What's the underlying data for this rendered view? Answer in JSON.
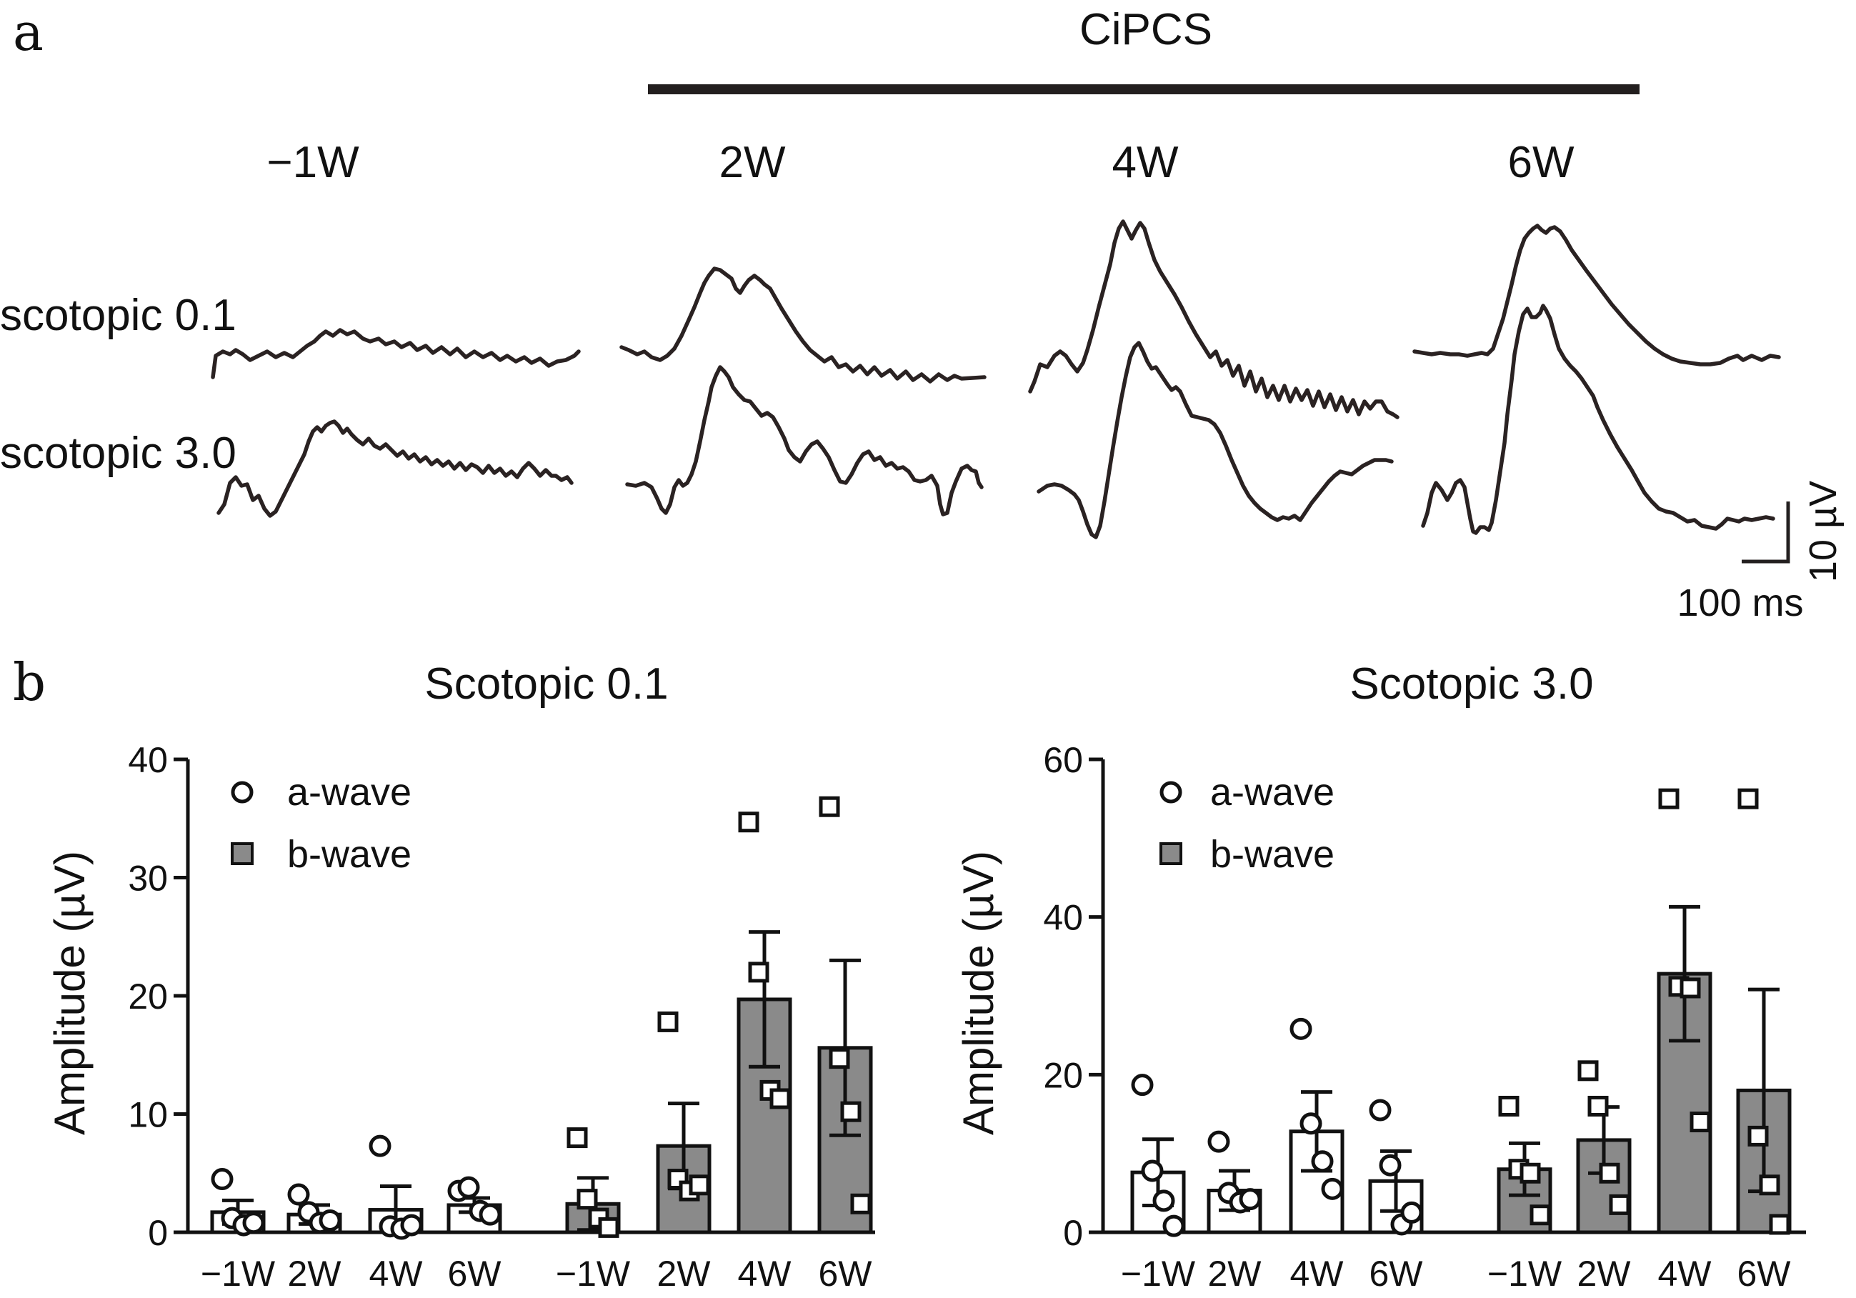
{
  "panel_a": {
    "letter": "a",
    "treatment_label": "CiPCS",
    "timepoints": [
      "−1W",
      "2W",
      "4W",
      "6W"
    ],
    "row_labels": [
      "scotopic 0.1",
      "scotopic 3.0"
    ],
    "scale_bar": {
      "vertical_label": "10 µV",
      "horizontal_label": "100 ms"
    }
  },
  "panel_b": {
    "letter": "b"
  },
  "legend": {
    "a_wave": "a-wave",
    "b_wave": "b-wave"
  },
  "chart_data": [
    {
      "type": "bar",
      "title": "Scotopic 0.1",
      "ylabel": "Amplitude (µV)",
      "xlabel": "",
      "ylim": [
        0,
        40
      ],
      "yticks": [
        "0",
        "10",
        "20",
        "30",
        "40"
      ],
      "categories": [
        "−1W",
        "2W",
        "4W",
        "6W",
        "−1W",
        "2W",
        "4W",
        "6W"
      ],
      "series": [
        {
          "name": "a-wave",
          "categories": [
            "−1W",
            "2W",
            "4W",
            "6W"
          ],
          "means": [
            1.7,
            1.5,
            1.9,
            2.3
          ],
          "sem": [
            1.0,
            0.8,
            2.0,
            0.6
          ],
          "points": [
            [
              4.5,
              1.2,
              0.6,
              0.8
            ],
            [
              3.2,
              1.7,
              0.8,
              1.0
            ],
            [
              7.3,
              0.5,
              0.3,
              0.6
            ],
            [
              3.5,
              3.8,
              1.8,
              1.5
            ]
          ]
        },
        {
          "name": "b-wave",
          "categories": [
            "−1W",
            "2W",
            "4W",
            "6W"
          ],
          "means": [
            2.4,
            7.3,
            19.7,
            15.6
          ],
          "sem": [
            2.2,
            3.6,
            5.7,
            7.4
          ],
          "points": [
            [
              8.0,
              2.8,
              1.2,
              0.4
            ],
            [
              17.8,
              4.5,
              3.5,
              4.0
            ],
            [
              34.7,
              22.0,
              12.0,
              11.3
            ],
            [
              36.0,
              14.7,
              10.2,
              2.4
            ]
          ]
        }
      ],
      "legend": [
        "a-wave",
        "b-wave"
      ]
    },
    {
      "type": "bar",
      "title": "Scotopic 3.0",
      "ylabel": "Amplitude (µV)",
      "xlabel": "",
      "ylim": [
        0,
        60
      ],
      "yticks": [
        "0",
        "20",
        "40",
        "60"
      ],
      "categories": [
        "−1W",
        "2W",
        "4W",
        "6W",
        "−1W",
        "2W",
        "4W",
        "6W"
      ],
      "series": [
        {
          "name": "a-wave",
          "categories": [
            "−1W",
            "2W",
            "4W",
            "6W"
          ],
          "means": [
            7.6,
            5.3,
            12.8,
            6.5
          ],
          "sem": [
            4.2,
            2.5,
            5.0,
            3.8
          ],
          "points": [
            [
              18.7,
              7.8,
              4.0,
              0.8
            ],
            [
              11.5,
              5.0,
              3.8,
              4.2
            ],
            [
              25.8,
              13.8,
              9.0,
              5.5
            ],
            [
              15.5,
              8.5,
              1.0,
              2.5
            ]
          ]
        },
        {
          "name": "b-wave",
          "categories": [
            "−1W",
            "2W",
            "4W",
            "6W"
          ],
          "means": [
            8.0,
            11.7,
            32.8,
            18.0
          ],
          "sem": [
            3.3,
            4.2,
            8.5,
            12.8
          ],
          "points": [
            [
              16.0,
              8.0,
              7.5,
              2.2
            ],
            [
              20.5,
              16.0,
              7.5,
              3.5
            ],
            [
              55.0,
              31.2,
              31.0,
              14.0
            ],
            [
              55.0,
              12.2,
              6.0,
              1.0
            ]
          ]
        }
      ],
      "legend": [
        "a-wave",
        "b-wave"
      ]
    }
  ]
}
